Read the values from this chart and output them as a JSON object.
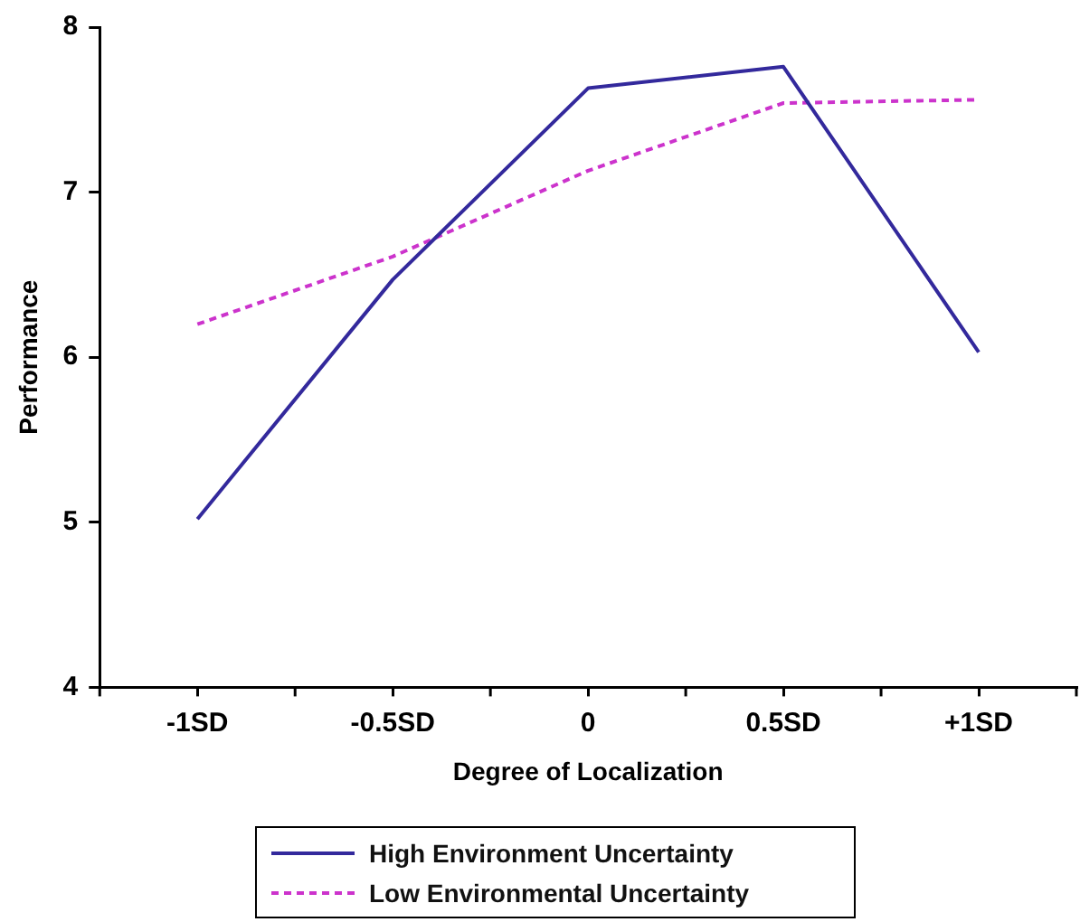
{
  "chart_data": {
    "type": "line",
    "xlabel": "Degree of Localization",
    "ylabel": "Performance",
    "categories": [
      "-1SD",
      "-0.5SD",
      "0",
      "0.5SD",
      "+1SD"
    ],
    "series": [
      {
        "name": "High Environment Uncertainty",
        "color": "#33299c",
        "values": [
          5.02,
          6.47,
          7.63,
          7.76,
          6.03
        ],
        "line_style": "solid"
      },
      {
        "name": "Low Environmental Uncertainty",
        "color": "#cc33cc",
        "values": [
          6.2,
          6.61,
          7.13,
          7.54,
          7.56
        ],
        "line_style": "dashed"
      }
    ],
    "ylim": [
      4,
      8
    ],
    "yticks": [
      4,
      5,
      6,
      7,
      8
    ],
    "grid": false,
    "legend": "bottom",
    "marker": "none"
  }
}
